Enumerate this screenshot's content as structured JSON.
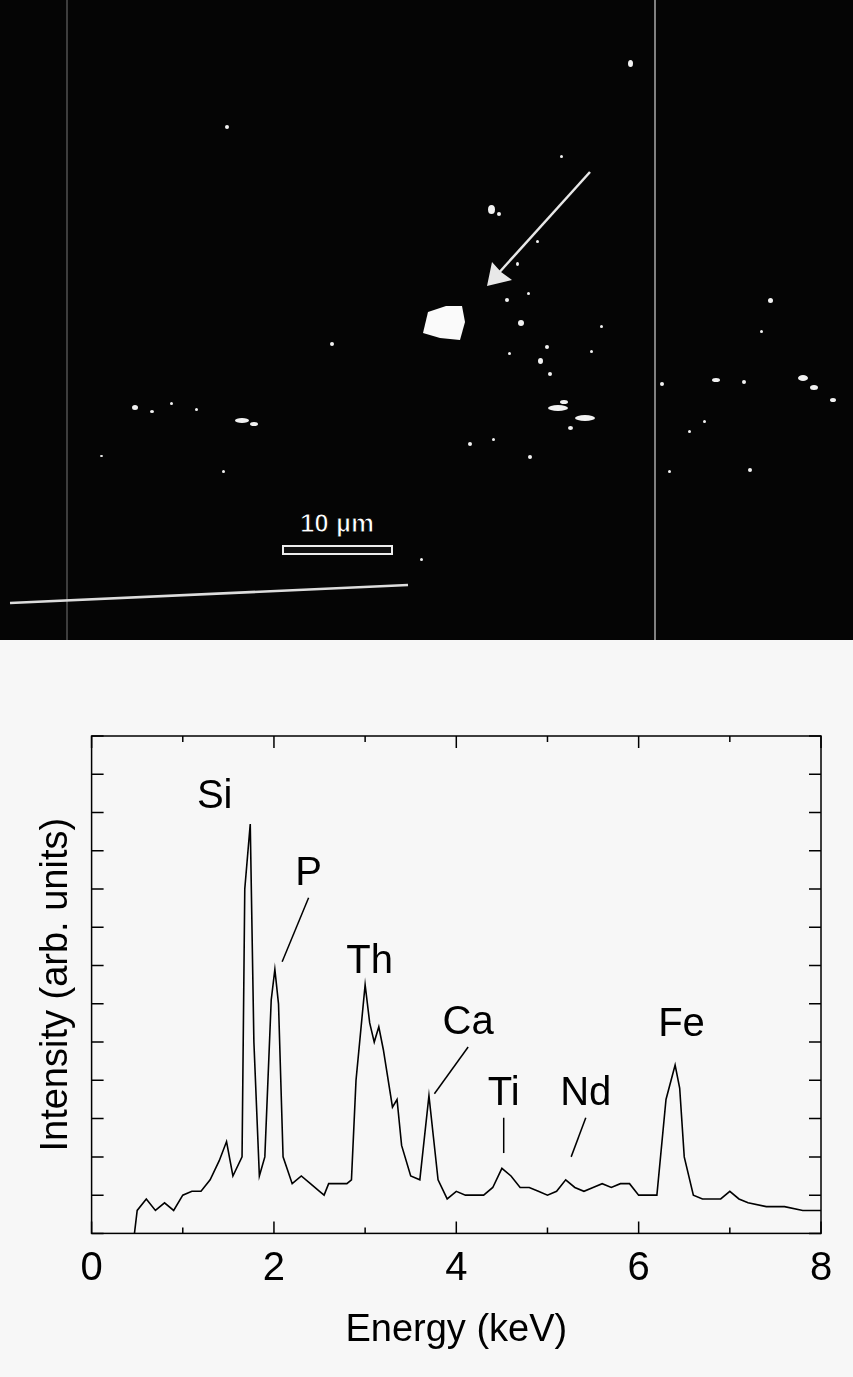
{
  "image": {
    "scale_bar_label": "10 µm"
  },
  "chart_data": {
    "type": "line",
    "x_label": "Energy (keV)",
    "y_label": "Intensity (arb. units)",
    "x": [
      0.47,
      0.5,
      0.6,
      0.7,
      0.8,
      0.9,
      1.0,
      1.1,
      1.2,
      1.3,
      1.4,
      1.48,
      1.55,
      1.65,
      1.68,
      1.74,
      1.78,
      1.84,
      1.9,
      1.97,
      2.01,
      2.05,
      2.1,
      2.2,
      2.3,
      2.4,
      2.5,
      2.55,
      2.6,
      2.7,
      2.8,
      2.85,
      2.9,
      3.0,
      3.05,
      3.1,
      3.15,
      3.2,
      3.3,
      3.35,
      3.4,
      3.5,
      3.6,
      3.7,
      3.75,
      3.8,
      3.9,
      4.0,
      4.1,
      4.2,
      4.3,
      4.4,
      4.5,
      4.6,
      4.7,
      4.8,
      4.9,
      5.0,
      5.1,
      5.2,
      5.3,
      5.4,
      5.5,
      5.6,
      5.7,
      5.8,
      5.9,
      6.0,
      6.1,
      6.2,
      6.3,
      6.4,
      6.45,
      6.5,
      6.6,
      6.7,
      6.8,
      6.9,
      7.0,
      7.1,
      7.2,
      7.4,
      7.6,
      7.8,
      8.0
    ],
    "values": [
      0,
      0.6,
      0.9,
      0.6,
      0.8,
      0.6,
      1.0,
      1.1,
      1.1,
      1.4,
      1.9,
      2.4,
      1.5,
      2.0,
      9.0,
      10.7,
      5.0,
      1.5,
      2.0,
      6.1,
      6.9,
      6.0,
      2.0,
      1.3,
      1.5,
      1.3,
      1.1,
      1.0,
      1.3,
      1.3,
      1.3,
      1.4,
      4.0,
      6.5,
      5.5,
      5.0,
      5.4,
      4.8,
      3.3,
      3.5,
      2.3,
      1.5,
      1.4,
      3.6,
      2.5,
      1.4,
      0.9,
      1.1,
      1.0,
      1.0,
      1.0,
      1.2,
      1.7,
      1.5,
      1.2,
      1.2,
      1.1,
      1.0,
      1.1,
      1.4,
      1.2,
      1.1,
      1.2,
      1.3,
      1.2,
      1.3,
      1.3,
      1.0,
      1.0,
      1.0,
      3.5,
      4.4,
      3.8,
      2.0,
      1.0,
      0.9,
      0.9,
      0.9,
      1.1,
      0.9,
      0.8,
      0.7,
      0.7,
      0.6,
      0.6
    ],
    "color": "#000000",
    "xlim": [
      0,
      8
    ],
    "xticks": [
      0,
      2,
      4,
      6,
      8
    ],
    "ylim": [
      0,
      13
    ],
    "yticks": [
      0,
      1,
      2,
      3,
      4,
      5,
      6,
      7,
      8,
      9,
      10,
      11,
      12,
      13
    ],
    "tick_labels": "x",
    "grid": false,
    "annotations": [
      {
        "text": "Si",
        "x": 1.35,
        "y": 11.4
      },
      {
        "text": "P",
        "x": 2.38,
        "y": 9.4,
        "line_to": [
          2.09,
          7.1
        ]
      },
      {
        "text": "Th",
        "x": 3.05,
        "y": 7.1
      },
      {
        "text": "Ca",
        "x": 4.13,
        "y": 5.5,
        "line_to": [
          3.76,
          3.65
        ]
      },
      {
        "text": "Ti",
        "x": 4.52,
        "y": 3.65,
        "line_to": [
          4.52,
          2.1
        ]
      },
      {
        "text": "Nd",
        "x": 5.42,
        "y": 3.65,
        "line_to": [
          5.26,
          2.0
        ]
      },
      {
        "text": "Fe",
        "x": 6.47,
        "y": 5.45
      }
    ]
  }
}
